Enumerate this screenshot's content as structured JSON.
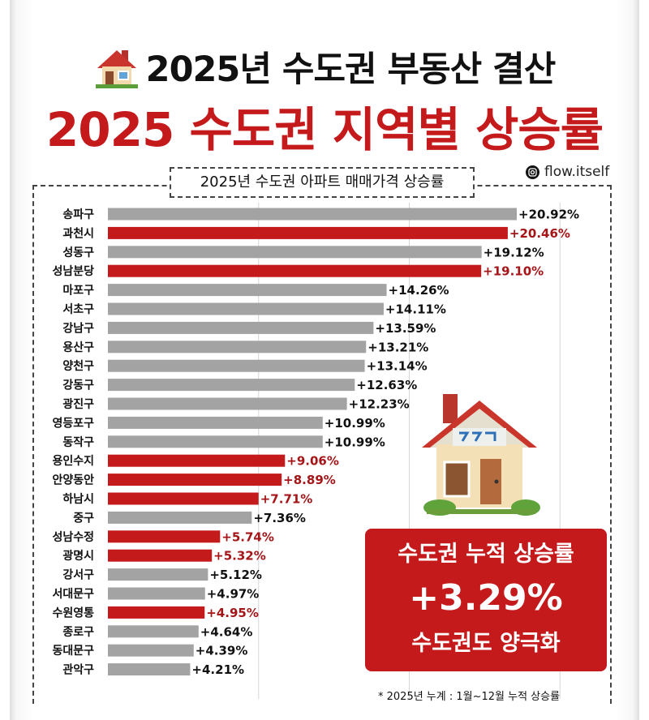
{
  "header": {
    "title": "2025년 수도권 부동산 결산",
    "headline": "2025 수도권 지역별 상승률",
    "credit": "flow.itself",
    "subtitle": "2025년 수도권 아파트 매매가격 상승률"
  },
  "callout": {
    "title": "수도권 누적 상승률",
    "value": "+3.29%",
    "subtitle": "수도권도 양극화"
  },
  "footnote": "* 2025년 누계 : 1월~12월 누적 상승률",
  "colors": {
    "gray_bar": "#a3a3a3",
    "red_bar": "#c41a1c",
    "red_text": "#a51518",
    "black_text": "#111111"
  },
  "chart_data": {
    "type": "bar",
    "orientation": "horizontal",
    "unit": "%",
    "categories": [
      "송파구",
      "과천시",
      "성동구",
      "성남분당",
      "마포구",
      "서초구",
      "강남구",
      "용산구",
      "양천구",
      "강동구",
      "광진구",
      "영등포구",
      "동작구",
      "용인수지",
      "안양동안",
      "하남시",
      "중구",
      "성남수정",
      "광명시",
      "강서구",
      "서대문구",
      "수원영통",
      "종로구",
      "동대문구",
      "관악구"
    ],
    "values": [
      20.92,
      20.46,
      19.12,
      19.1,
      14.26,
      14.11,
      13.59,
      13.21,
      13.14,
      12.63,
      12.23,
      10.99,
      10.99,
      9.06,
      8.89,
      7.71,
      7.36,
      5.74,
      5.32,
      5.12,
      4.97,
      4.95,
      4.64,
      4.39,
      4.21
    ],
    "labels": [
      "+20.92%",
      "+20.46%",
      "+19.12%",
      "+19.10%",
      "+14.26%",
      "+14.11%",
      "+13.59%",
      "+13.21%",
      "+13.14%",
      "+12.63%",
      "+12.23%",
      "+10.99%",
      "+10.99%",
      "+9.06%",
      "+8.89%",
      "+7.71%",
      "+7.36%",
      "+5.74%",
      "+5.32%",
      "+5.12%",
      "+4.97%",
      "+4.95%",
      "+4.64%",
      "+4.39%",
      "+4.21%"
    ],
    "highlight": [
      false,
      true,
      false,
      true,
      false,
      false,
      false,
      false,
      false,
      false,
      false,
      false,
      false,
      true,
      true,
      true,
      false,
      true,
      true,
      false,
      false,
      true,
      false,
      false,
      false
    ],
    "xlim": [
      0,
      21
    ],
    "grid": true
  }
}
